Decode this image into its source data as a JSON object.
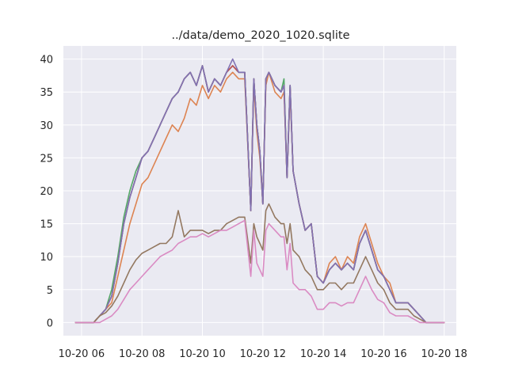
{
  "chart_data": {
    "type": "line",
    "title": "../data/demo_2020_1020.sqlite",
    "xlabel": "",
    "ylabel": "",
    "x_ticks": [
      "10-20 06",
      "10-20 08",
      "10-20 10",
      "10-20 12",
      "10-20 14",
      "10-20 16",
      "10-20 18"
    ],
    "y_ticks": [
      "0",
      "5",
      "10",
      "15",
      "20",
      "25",
      "30",
      "35",
      "40"
    ],
    "xlim": [
      "10-20 05:24",
      "10-20 18:24"
    ],
    "ylim": [
      -2,
      42
    ],
    "grid": true,
    "background": "#eaeaf2",
    "x": [
      "10-20 05:48",
      "10-20 06:00",
      "10-20 06:12",
      "10-20 06:24",
      "10-20 06:36",
      "10-20 06:48",
      "10-20 07:00",
      "10-20 07:12",
      "10-20 07:24",
      "10-20 07:36",
      "10-20 07:48",
      "10-20 08:00",
      "10-20 08:12",
      "10-20 08:24",
      "10-20 08:36",
      "10-20 08:48",
      "10-20 09:00",
      "10-20 09:12",
      "10-20 09:24",
      "10-20 09:36",
      "10-20 09:48",
      "10-20 10:00",
      "10-20 10:12",
      "10-20 10:24",
      "10-20 10:36",
      "10-20 10:48",
      "10-20 11:00",
      "10-20 11:12",
      "10-20 11:24",
      "10-20 11:36",
      "10-20 11:42",
      "10-20 11:48",
      "10-20 11:54",
      "10-20 12:00",
      "10-20 12:06",
      "10-20 12:12",
      "10-20 12:24",
      "10-20 12:36",
      "10-20 12:42",
      "10-20 12:48",
      "10-20 12:54",
      "10-20 13:00",
      "10-20 13:12",
      "10-20 13:24",
      "10-20 13:36",
      "10-20 13:48",
      "10-20 14:00",
      "10-20 14:12",
      "10-20 14:24",
      "10-20 14:36",
      "10-20 14:48",
      "10-20 15:00",
      "10-20 15:12",
      "10-20 15:24",
      "10-20 15:36",
      "10-20 15:48",
      "10-20 16:00",
      "10-20 16:12",
      "10-20 16:24",
      "10-20 16:36",
      "10-20 16:48",
      "10-20 17:00",
      "10-20 17:12",
      "10-20 17:24",
      "10-20 17:36",
      "10-20 17:48",
      "10-20 18:00"
    ],
    "series": [
      {
        "color": "#4c72b0",
        "values": [
          0,
          0,
          0,
          0,
          1,
          2,
          4,
          9,
          15,
          19,
          22,
          25,
          26,
          28,
          30,
          32,
          34,
          35,
          37,
          38,
          36,
          39,
          35,
          37,
          36,
          38,
          39,
          38,
          38,
          17,
          37,
          30,
          26,
          18,
          37,
          38,
          36,
          35,
          36,
          22,
          36,
          23,
          18,
          14,
          15,
          7,
          6,
          8,
          9,
          8,
          9,
          8,
          12,
          14,
          11,
          8,
          7,
          5,
          3,
          3,
          3,
          2,
          1,
          0,
          0,
          0,
          0
        ]
      },
      {
        "color": "#dd8452",
        "values": [
          0,
          0,
          0,
          0,
          1,
          2,
          3,
          7,
          11,
          15,
          18,
          21,
          22,
          24,
          26,
          28,
          30,
          29,
          31,
          34,
          33,
          36,
          34,
          36,
          35,
          37,
          38,
          37,
          37,
          17,
          36,
          29,
          25,
          18,
          36,
          38,
          35,
          34,
          35,
          22,
          35,
          23,
          18,
          14,
          15,
          7,
          6,
          9,
          10,
          8,
          10,
          9,
          13,
          15,
          12,
          9,
          7,
          6,
          3,
          3,
          3,
          2,
          1,
          0,
          0,
          0,
          0
        ]
      },
      {
        "color": "#55a868",
        "values": [
          0,
          0,
          0,
          0,
          1,
          2,
          5,
          10,
          16,
          20,
          23,
          25,
          26,
          28,
          30,
          32,
          34,
          35,
          37,
          38,
          36,
          39,
          35,
          37,
          36,
          38,
          39,
          38,
          38,
          17,
          37,
          30,
          26,
          18,
          37,
          38,
          36,
          35,
          37,
          22,
          36,
          23,
          18,
          14,
          15,
          7,
          6,
          8,
          9,
          8,
          9,
          8,
          12,
          14,
          11,
          8,
          7,
          5,
          3,
          3,
          3,
          2,
          1,
          0,
          0,
          0,
          0
        ]
      },
      {
        "color": "#c44e52",
        "values": [
          0,
          0,
          0,
          0,
          1,
          2,
          4,
          9,
          15,
          19,
          22,
          25,
          26,
          28,
          30,
          32,
          34,
          35,
          37,
          38,
          36,
          39,
          35,
          37,
          36,
          38,
          39,
          38,
          38,
          17,
          37,
          30,
          26,
          18,
          37,
          38,
          36,
          35,
          36,
          22,
          36,
          23,
          18,
          14,
          15,
          7,
          6,
          8,
          9,
          8,
          9,
          8,
          12,
          14,
          11,
          8,
          7,
          5,
          3,
          3,
          3,
          2,
          1,
          0,
          0,
          0,
          0
        ]
      },
      {
        "color": "#8172b3",
        "values": [
          0,
          0,
          0,
          0,
          1,
          2,
          4,
          9,
          15,
          19,
          22,
          25,
          26,
          28,
          30,
          32,
          34,
          35,
          37,
          38,
          36,
          39,
          35,
          37,
          36,
          38,
          40,
          38,
          38,
          17,
          37,
          30,
          26,
          18,
          37,
          38,
          36,
          35,
          36,
          22,
          36,
          23,
          18,
          14,
          15,
          7,
          6,
          8,
          9,
          8,
          9,
          8,
          12,
          14,
          11,
          8,
          7,
          5,
          3,
          3,
          3,
          2,
          1,
          0,
          0,
          0,
          0
        ]
      },
      {
        "color": "#937860",
        "values": [
          0,
          0,
          0,
          0,
          1,
          1.5,
          2.5,
          4,
          6,
          8,
          9.5,
          10.5,
          11,
          11.5,
          12,
          12,
          13,
          17,
          13,
          14,
          14,
          14,
          13.5,
          14,
          14,
          15,
          15.5,
          16,
          16,
          9,
          15,
          13,
          12,
          11,
          17,
          18,
          16,
          15,
          15,
          12,
          15,
          11,
          10,
          8,
          7,
          5,
          5,
          6,
          6,
          5,
          6,
          6,
          8,
          10,
          8,
          6,
          5,
          3,
          2,
          2,
          2,
          1,
          0.5,
          0,
          0,
          0,
          0
        ]
      },
      {
        "color": "#da8bc3",
        "values": [
          0,
          0,
          0,
          0,
          0,
          0.5,
          1,
          2,
          3.5,
          5,
          6,
          7,
          8,
          9,
          10,
          10.5,
          11,
          12,
          12.5,
          13,
          13,
          13.5,
          13,
          13.5,
          14,
          14,
          14.5,
          15,
          15.5,
          7,
          14,
          9,
          8,
          7,
          14,
          15,
          14,
          13,
          13,
          8,
          12,
          6,
          5,
          5,
          4,
          2,
          2,
          3,
          3,
          2.5,
          3,
          3,
          5,
          7,
          5,
          3.5,
          3,
          1.5,
          1,
          1,
          1,
          0.5,
          0,
          0,
          0,
          0,
          0
        ]
      }
    ]
  }
}
